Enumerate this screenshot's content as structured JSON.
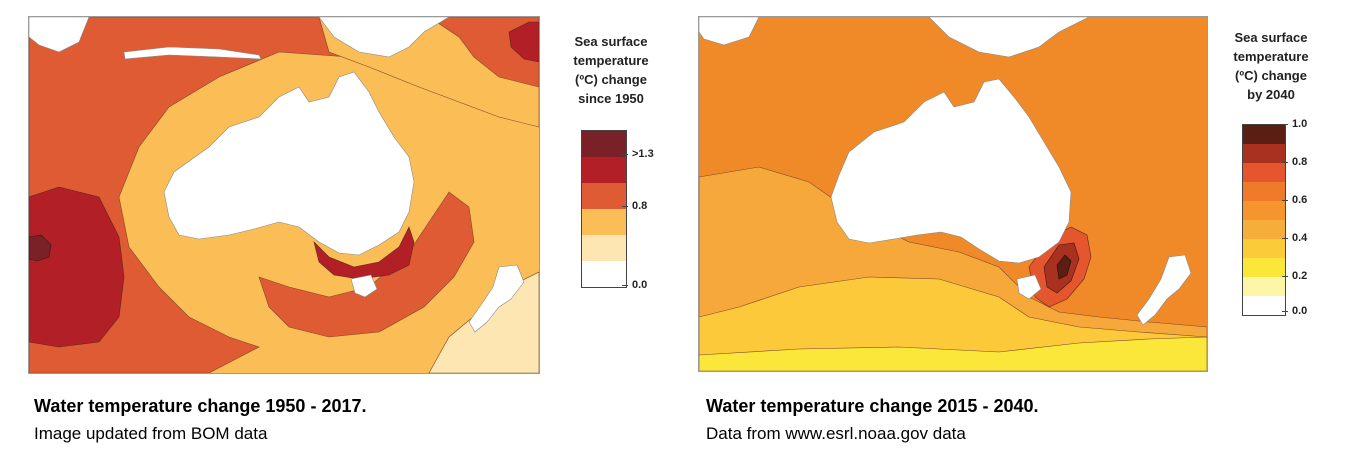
{
  "left_panel": {
    "legend": {
      "title_lines": [
        "Sea surface",
        "temperature",
        "(ºC) change",
        "since 1950"
      ],
      "colors": [
        "#7a2027",
        "#b21f27",
        "#df5b33",
        "#fbbd55",
        "#fde6b2",
        "#ffffff"
      ],
      "tick_labels": [
        ">1.3",
        "0.8",
        "0.0"
      ]
    },
    "caption": {
      "title": "Water temperature change 1950 - 2017.",
      "subtitle": "Image updated from BOM data"
    },
    "map_colors": {
      "base": "#fbbd55",
      "band_high": "#df5b33",
      "band_very_high": "#b21f27",
      "band_extreme": "#7a2027",
      "band_low": "#fde6b2",
      "land": "#ffffff"
    }
  },
  "right_panel": {
    "legend": {
      "title_lines": [
        "Sea surface",
        "temperature",
        "(ºC) change",
        "by 2040"
      ],
      "colors": [
        "#5a1e12",
        "#a8321f",
        "#e5552e",
        "#ef7a2a",
        "#f6952e",
        "#f7ad3a",
        "#fbcb3a",
        "#fbe63a",
        "#fdf6a6",
        "#ffffff"
      ],
      "tick_labels": [
        "1.0",
        "0.8",
        "0.6",
        "0.4",
        "0.2",
        "0.0"
      ]
    },
    "caption": {
      "title": "Water temperature change 2015 - 2040.",
      "subtitle": "Data from www.esrl.noaa.gov data"
    },
    "map_colors": {
      "base": "#f08a28",
      "band_mid": "#f6a83a",
      "band_low": "#fbc93a",
      "band_lowest": "#fbe63a",
      "hot_1": "#e5552e",
      "hot_2": "#a8321f",
      "hot_3": "#5a1e12",
      "land": "#ffffff"
    }
  }
}
